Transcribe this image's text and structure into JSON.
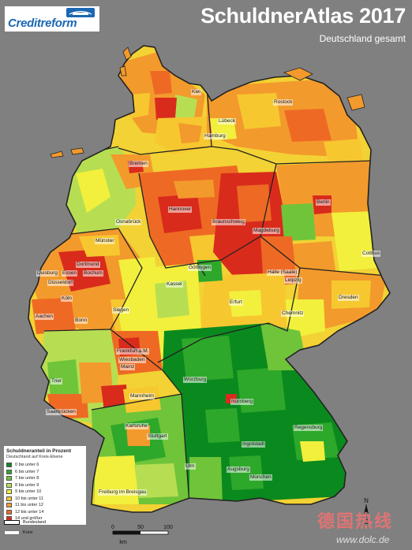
{
  "header": {
    "brand": "Creditreform",
    "title": "SchuldnerAtlas 2017",
    "subtitle": "Deutschland gesamt"
  },
  "colors": {
    "background": "#808080",
    "brand_blue": "#1b67b2"
  },
  "cities": [
    {
      "name": "Kiel"
    },
    {
      "name": "Rostock"
    },
    {
      "name": "Lübeck"
    },
    {
      "name": "Hamburg"
    },
    {
      "name": "Bremen"
    },
    {
      "name": "Berlin"
    },
    {
      "name": "Hannover"
    },
    {
      "name": "Braunschweig"
    },
    {
      "name": "Magdeburg"
    },
    {
      "name": "Osnabrück"
    },
    {
      "name": "Münster"
    },
    {
      "name": "Dortmund"
    },
    {
      "name": "Duisburg"
    },
    {
      "name": "Essen"
    },
    {
      "name": "Bochum"
    },
    {
      "name": "Düsseldorf"
    },
    {
      "name": "Köln"
    },
    {
      "name": "Aachen"
    },
    {
      "name": "Bonn"
    },
    {
      "name": "Göttingen"
    },
    {
      "name": "Kassel"
    },
    {
      "name": "Halle (Saale)"
    },
    {
      "name": "Leipzig"
    },
    {
      "name": "Cottbus"
    },
    {
      "name": "Dresden"
    },
    {
      "name": "Erfurt"
    },
    {
      "name": "Chemnitz"
    },
    {
      "name": "Siegen"
    },
    {
      "name": "Frankfurt a.M."
    },
    {
      "name": "Wiesbaden"
    },
    {
      "name": "Mainz"
    },
    {
      "name": "Trier"
    },
    {
      "name": "Mannheim"
    },
    {
      "name": "Saarbrücken"
    },
    {
      "name": "Würzburg"
    },
    {
      "name": "Nürnberg"
    },
    {
      "name": "Karlsruhe"
    },
    {
      "name": "Stuttgart"
    },
    {
      "name": "Regensburg"
    },
    {
      "name": "Ingolstadt"
    },
    {
      "name": "Ulm"
    },
    {
      "name": "Augsburg"
    },
    {
      "name": "München"
    },
    {
      "name": "Freiburg im Breisgau"
    }
  ],
  "legend": {
    "title": "Schuldneranteil in Prozent",
    "subtitle": "Deutschland auf Kreis-Ebene",
    "classes": [
      {
        "label": "0 bis unter  6",
        "color": "#0a8a1e"
      },
      {
        "label": "6 bis unter  7",
        "color": "#2ea82a"
      },
      {
        "label": "7 bis unter  8",
        "color": "#6fc43a"
      },
      {
        "label": "8 bis unter  9",
        "color": "#b7de52"
      },
      {
        "label": "9 bis unter 10",
        "color": "#f2f03c"
      },
      {
        "label": "10 bis unter 11",
        "color": "#f7c730"
      },
      {
        "label": "11 bis unter 12",
        "color": "#f39a2c"
      },
      {
        "label": "12 bis unter 14",
        "color": "#ee6a24"
      },
      {
        "label": "14 und größer",
        "color": "#d92b1c"
      }
    ]
  },
  "borders": {
    "state_label": "Bundesland",
    "district_label": "Kreis"
  },
  "scale": {
    "ticks": [
      "0",
      "50",
      "100"
    ],
    "unit": "km"
  },
  "compass": {
    "n": "N",
    "s": "S"
  },
  "watermark": {
    "text": "德国热线",
    "url": "www.dolc.de"
  }
}
